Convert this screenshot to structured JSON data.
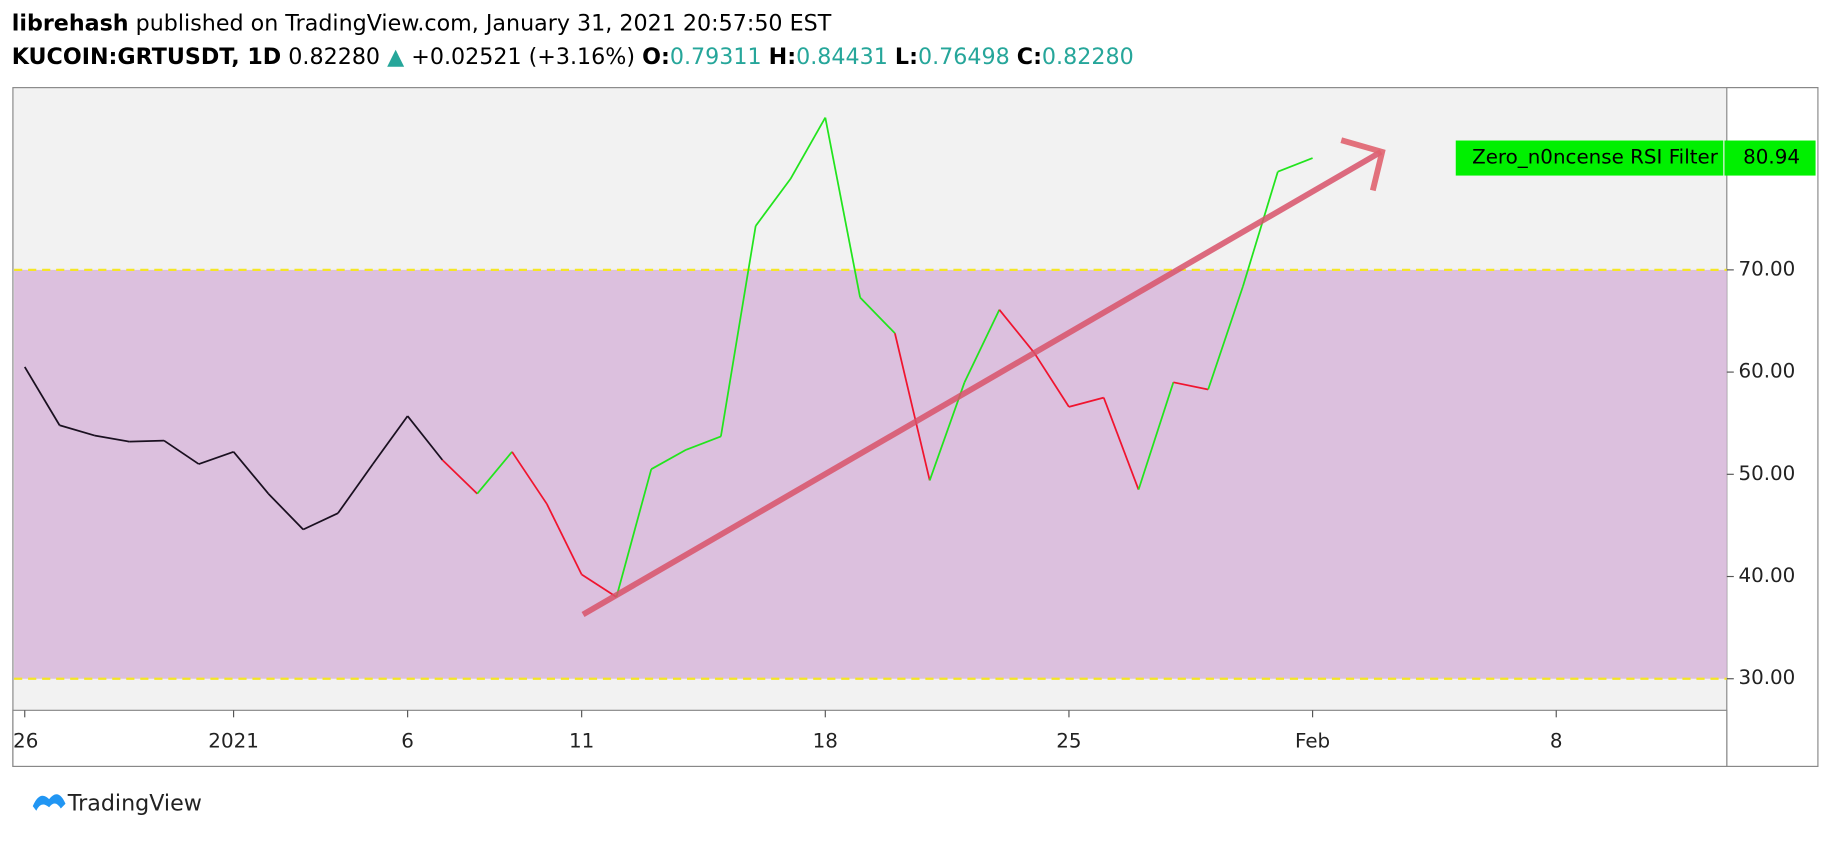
{
  "header": {
    "author": "librehash",
    "published": "published on TradingView.com, January 31, 2021 20:57:50 EST",
    "symbol": "KUCOIN:GRTUSDT, 1D",
    "price": "0.82280",
    "change": "+0.02521 (+3.16%)",
    "o_label": "O:",
    "o": "0.79311",
    "h_label": "H:",
    "h": "0.84431",
    "l_label": "L:",
    "l": "0.76498",
    "c_label": "C:",
    "c": "0.82280"
  },
  "footer": {
    "brand": "TradingView"
  },
  "chart_data": {
    "type": "line",
    "x": [
      0,
      1,
      2,
      3,
      4,
      5,
      6,
      7,
      8,
      9,
      10,
      11,
      12,
      13,
      14,
      15,
      16,
      17,
      18,
      19,
      20,
      21,
      22,
      23,
      24,
      25,
      26,
      27,
      28,
      29,
      30,
      31,
      32,
      33,
      34,
      35,
      36,
      37
    ],
    "series": [
      {
        "name": "Zero_n0ncense RSI Filter",
        "values": [
          60.5,
          54.8,
          53.8,
          53.2,
          53.3,
          51.0,
          52.2,
          48.1,
          44.6,
          46.2,
          51.0,
          55.7,
          51.4,
          48.1,
          52.2,
          47.1,
          40.2,
          38.0,
          50.5,
          52.4,
          53.7,
          74.3,
          78.9,
          84.9,
          67.3,
          63.8,
          49.4,
          59.0,
          66.1,
          61.9,
          56.6,
          57.5,
          48.5,
          59.0,
          58.3,
          68.4,
          79.6,
          80.94
        ],
        "colors": [
          "#1a1020",
          "#1a1020",
          "#1a1020",
          "#1a1020",
          "#1a1020",
          "#1a1020",
          "#1a1020",
          "#1a1020",
          "#1a1020",
          "#1a1020",
          "#1a1020",
          "#1a1020",
          "#1a1020",
          "#f0142f",
          "#22e41d",
          "#f0142f",
          "#f0142f",
          "#f0142f",
          "#22e41d",
          "#22e41d",
          "#22e41d",
          "#22e41d",
          "#22e41d",
          "#22e41d",
          "#22e41d",
          "#22e41d",
          "#f0142f",
          "#22e41d",
          "#22e41d",
          "#f0142f",
          "#f0142f",
          "#f0142f",
          "#f0142f",
          "#22e41d",
          "#f0142f",
          "#22e41d",
          "#22e41d",
          "#22e41d"
        ]
      }
    ],
    "xlim": [
      -0.34,
      48.9
    ],
    "xticks": [
      {
        "value": 0,
        "label": "26"
      },
      {
        "value": 6,
        "label": "2021"
      },
      {
        "value": 11,
        "label": "6"
      },
      {
        "value": 16,
        "label": "11"
      },
      {
        "value": 23,
        "label": "18"
      },
      {
        "value": 30,
        "label": "25"
      },
      {
        "value": 37,
        "label": "Feb"
      },
      {
        "value": 44,
        "label": "8"
      }
    ],
    "ylim": [
      26.91,
      87.83
    ],
    "yticks": [
      {
        "value": 30,
        "label": "30.00"
      },
      {
        "value": 40,
        "label": "40.00"
      },
      {
        "value": 50,
        "label": "50.00"
      },
      {
        "value": 60,
        "label": "60.00"
      },
      {
        "value": 70,
        "label": "70.00"
      }
    ],
    "band": [
      30,
      70
    ],
    "band_color": "#dcc0de",
    "band_line_color": "#f5e625"
  }
}
